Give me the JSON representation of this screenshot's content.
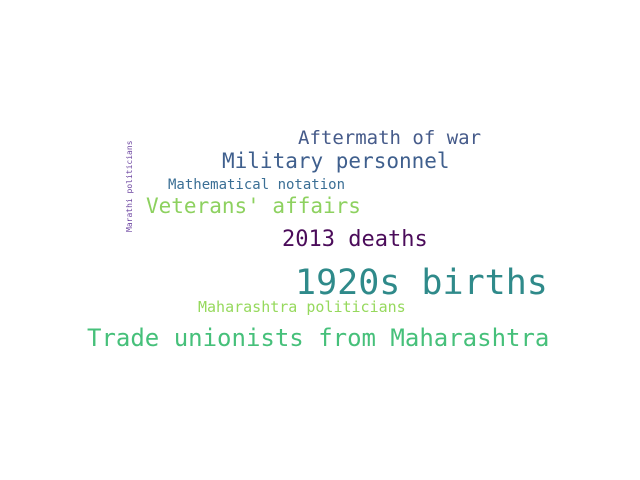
{
  "wordcloud": {
    "background": "#ffffff",
    "words": [
      {
        "key": "aftermath",
        "text": "Aftermath of war",
        "color": "#465b8a"
      },
      {
        "key": "military",
        "text": "Military personnel",
        "color": "#3f5f8d"
      },
      {
        "key": "math",
        "text": "Mathematical notation",
        "color": "#3b6f95"
      },
      {
        "key": "veterans",
        "text": "Veterans' affairs",
        "color": "#8dd15f"
      },
      {
        "key": "deaths",
        "text": "2013 deaths",
        "color": "#4b0c5a"
      },
      {
        "key": "births",
        "text": "1920s births",
        "color": "#2f8a8a"
      },
      {
        "key": "mahaPol",
        "text": "Maharashtra politicians",
        "color": "#96d95d"
      },
      {
        "key": "trade",
        "text": "Trade unionists from Maharashtra",
        "color": "#46c07a"
      },
      {
        "key": "marathi",
        "text": "Marathi politicians",
        "color": "#6d46a1"
      }
    ]
  }
}
